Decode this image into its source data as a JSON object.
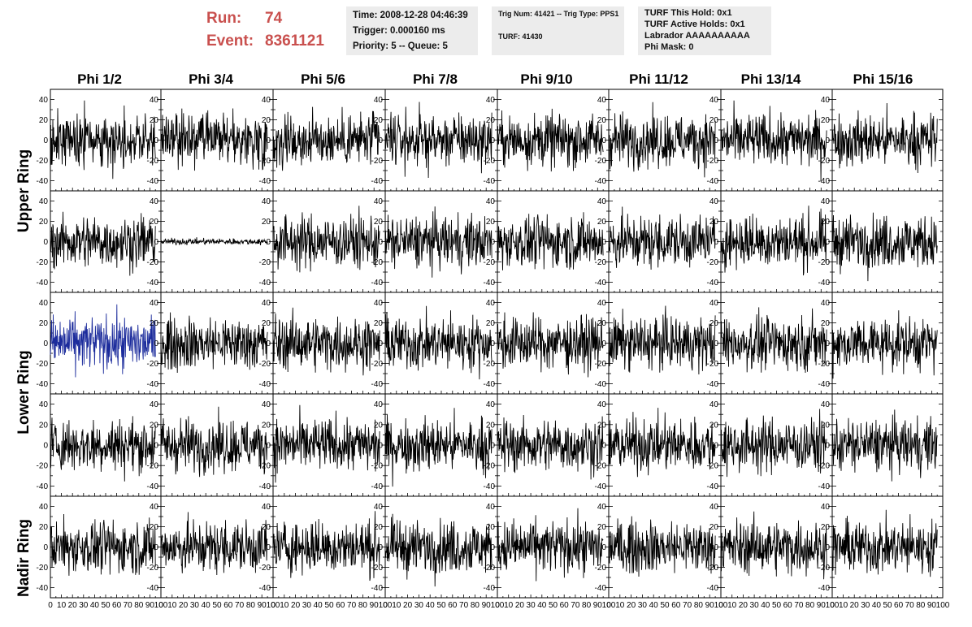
{
  "header": {
    "run_label": "Run:",
    "run_value": "74",
    "event_label": "Event:",
    "event_value": "8361121",
    "time_box": {
      "time": "Time: 2008-12-28 04:46:39",
      "trigger": "Trigger: 0.000160 ms",
      "priority": "Priority: 5 -- Queue: 5"
    },
    "trig_box": {
      "trig": "Trig Num: 41421 -- Trig Type: PPS1",
      "turf": "TURF: 41430"
    },
    "turf_box": {
      "this_hold": "TURF This Hold: 0x1",
      "active_holds": "TURF Active Holds: 0x1",
      "labrador": "Labrador AAAAAAAAAA",
      "phi_mask": "Phi Mask: 0"
    }
  },
  "colors": {
    "header_red": "#c9504e",
    "trace": "#000000",
    "highlight_trace": "#1c2c9c",
    "panel_border": "#000000"
  },
  "chart_data": {
    "type": "line",
    "columns": [
      "Phi 1/2",
      "Phi 3/4",
      "Phi 5/6",
      "Phi 7/8",
      "Phi 9/10",
      "Phi 11/12",
      "Phi 13/14",
      "Phi 15/16"
    ],
    "row_labels": [
      "Upper Ring",
      "Lower Ring",
      "Nadir Ring"
    ],
    "rows": 5,
    "xlim": [
      0,
      100
    ],
    "ylim": [
      -50,
      50
    ],
    "x_ticks": [
      "0",
      "10",
      "20",
      "30",
      "40",
      "50",
      "60",
      "70",
      "80",
      "90",
      "100"
    ],
    "y_ticks": [
      "40",
      "20",
      "0",
      "-20",
      "-40"
    ],
    "samples": 260,
    "trace_x_extent": [
      0,
      95
    ],
    "amplitude_pattern": "noise, typical range about -30 to 30; row 2 column 2 nearly flat (about -2 to 2); row 3 column 1 drawn in blue",
    "quiet_panel": [
      1,
      1
    ],
    "highlight_panel": [
      2,
      0
    ],
    "typical_amplitude": 13,
    "quiet_amplitude": 1.5
  }
}
